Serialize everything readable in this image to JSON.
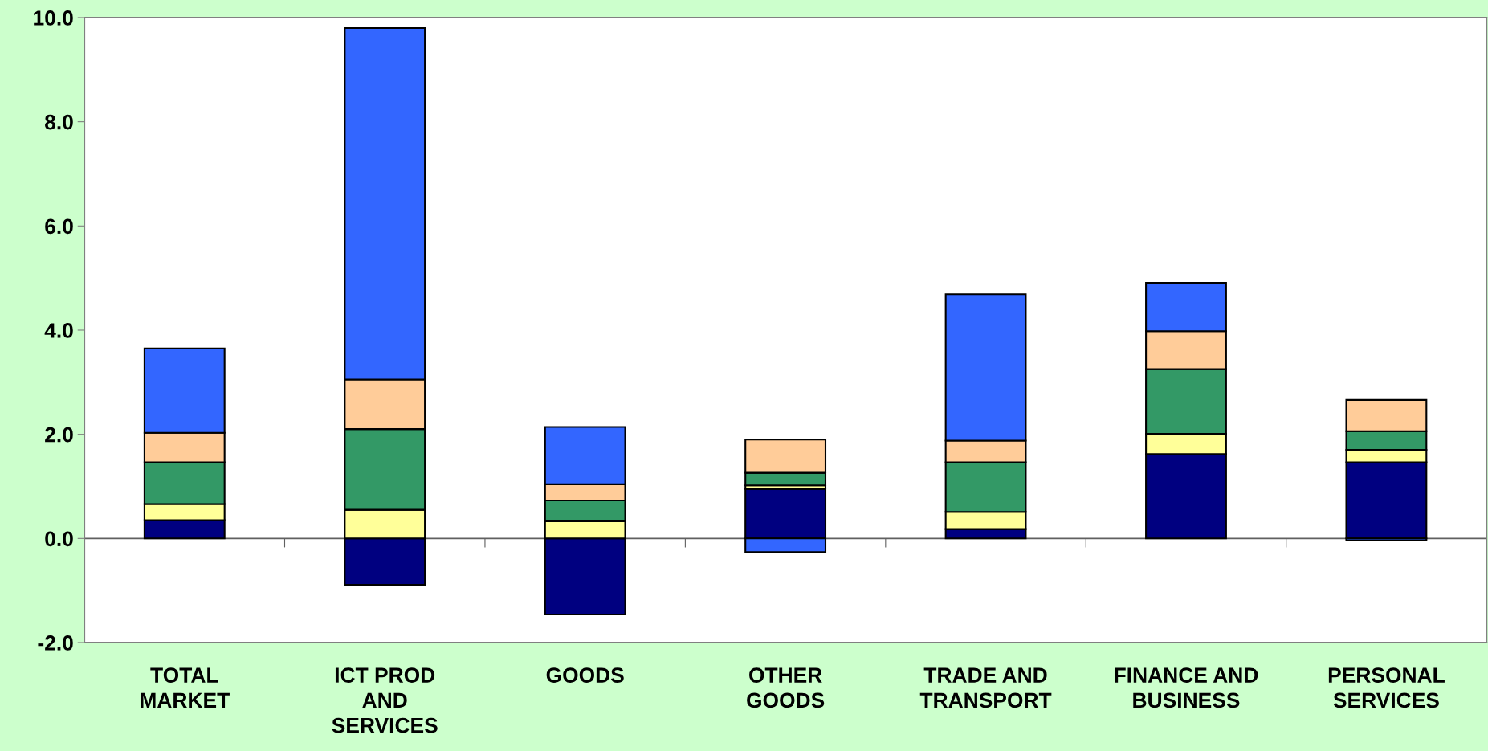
{
  "chart_data": {
    "type": "bar",
    "stacked": true,
    "categories": [
      "TOTAL\nMARKET",
      "ICT PROD\nAND\nSERVICES",
      "GOODS",
      "OTHER\nGOODS",
      "TRADE AND\nTRANSPORT",
      "FINANCE AND\nBUSINESS",
      "PERSONAL\nSERVICES"
    ],
    "series": [
      {
        "color": "#000080",
        "values": [
          0.35,
          -0.89,
          -1.46,
          0.95,
          0.18,
          1.62,
          1.46
        ]
      },
      {
        "color": "#ffff99",
        "values": [
          0.31,
          0.55,
          0.33,
          0.07,
          0.33,
          0.39,
          0.24
        ]
      },
      {
        "color": "#339966",
        "values": [
          0.8,
          1.55,
          0.4,
          0.24,
          0.95,
          1.24,
          0.36
        ]
      },
      {
        "color": "#ffcc99",
        "values": [
          0.57,
          0.95,
          0.31,
          0.64,
          0.42,
          0.73,
          0.6
        ]
      },
      {
        "color": "#3366ff",
        "values": [
          1.62,
          6.75,
          1.1,
          -0.26,
          2.81,
          0.93,
          -0.04
        ]
      }
    ],
    "ylim": [
      -2,
      10
    ],
    "yticks": [
      {
        "value": -2,
        "label": "-2.0"
      },
      {
        "value": 0,
        "label": "0.0"
      },
      {
        "value": 2,
        "label": "2.0"
      },
      {
        "value": 4,
        "label": "4.0"
      },
      {
        "value": 6,
        "label": "6.0"
      },
      {
        "value": 8,
        "label": "8.0"
      },
      {
        "value": 10,
        "label": "10.0"
      }
    ],
    "legend": false
  }
}
